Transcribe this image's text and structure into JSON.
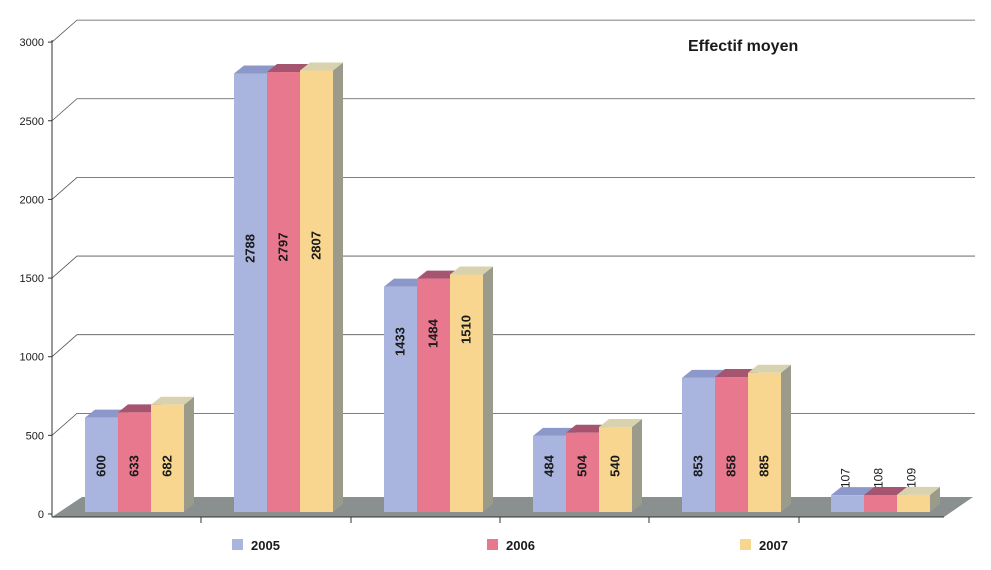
{
  "chart_data": {
    "type": "bar",
    "title": "Effectif moyen",
    "xlabel": "",
    "ylabel": "",
    "ylim": [
      0,
      3000
    ],
    "yticks": [
      0,
      500,
      1000,
      1500,
      2000,
      2500,
      3000
    ],
    "grid": true,
    "legend_position": "bottom",
    "categories": [
      "",
      "",
      "",
      "",
      "",
      ""
    ],
    "series": [
      {
        "name": "2005",
        "color": "#a9b5df",
        "top": "#8b98c9",
        "values": [
          600,
          2788,
          1433,
          484,
          853,
          107
        ]
      },
      {
        "name": "2006",
        "color": "#e8788e",
        "top": "#a55570",
        "values": [
          633,
          2797,
          1484,
          504,
          858,
          108
        ]
      },
      {
        "name": "2007",
        "color": "#f8d690",
        "top": "#d9d2ae",
        "values": [
          682,
          2807,
          1510,
          540,
          885,
          109
        ]
      }
    ],
    "colors": {
      "floor": "#8a8f8f",
      "side": "#9a9b8b",
      "grid": "#555555"
    }
  }
}
